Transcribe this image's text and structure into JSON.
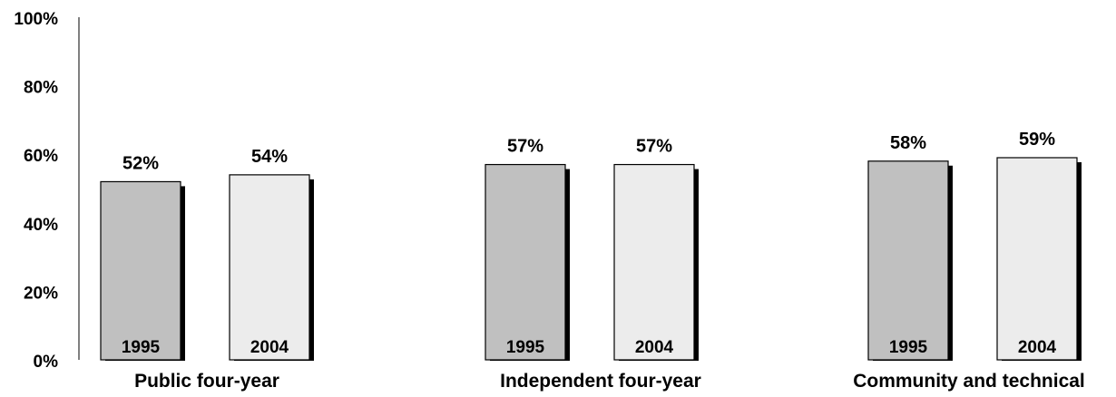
{
  "chart_data": {
    "type": "bar",
    "title": "",
    "xlabel": "",
    "ylabel": "",
    "ylim": [
      0,
      100
    ],
    "ytick_labels": [
      "0%",
      "20%",
      "40%",
      "60%",
      "80%",
      "100%"
    ],
    "ytick_values": [
      0,
      20,
      40,
      60,
      80,
      100
    ],
    "grid": false,
    "legend": "none",
    "categories": [
      "Public four-year",
      "Independent four-year",
      "Community and technical"
    ],
    "series": [
      {
        "name": "1995",
        "values": [
          52,
          57,
          58
        ],
        "value_labels": [
          "52%",
          "57%",
          "58%"
        ],
        "color": "#c0c0c0"
      },
      {
        "name": "2004",
        "values": [
          54,
          57,
          59
        ],
        "value_labels": [
          "54%",
          "57%",
          "59%"
        ],
        "color": "#ececec"
      }
    ]
  }
}
